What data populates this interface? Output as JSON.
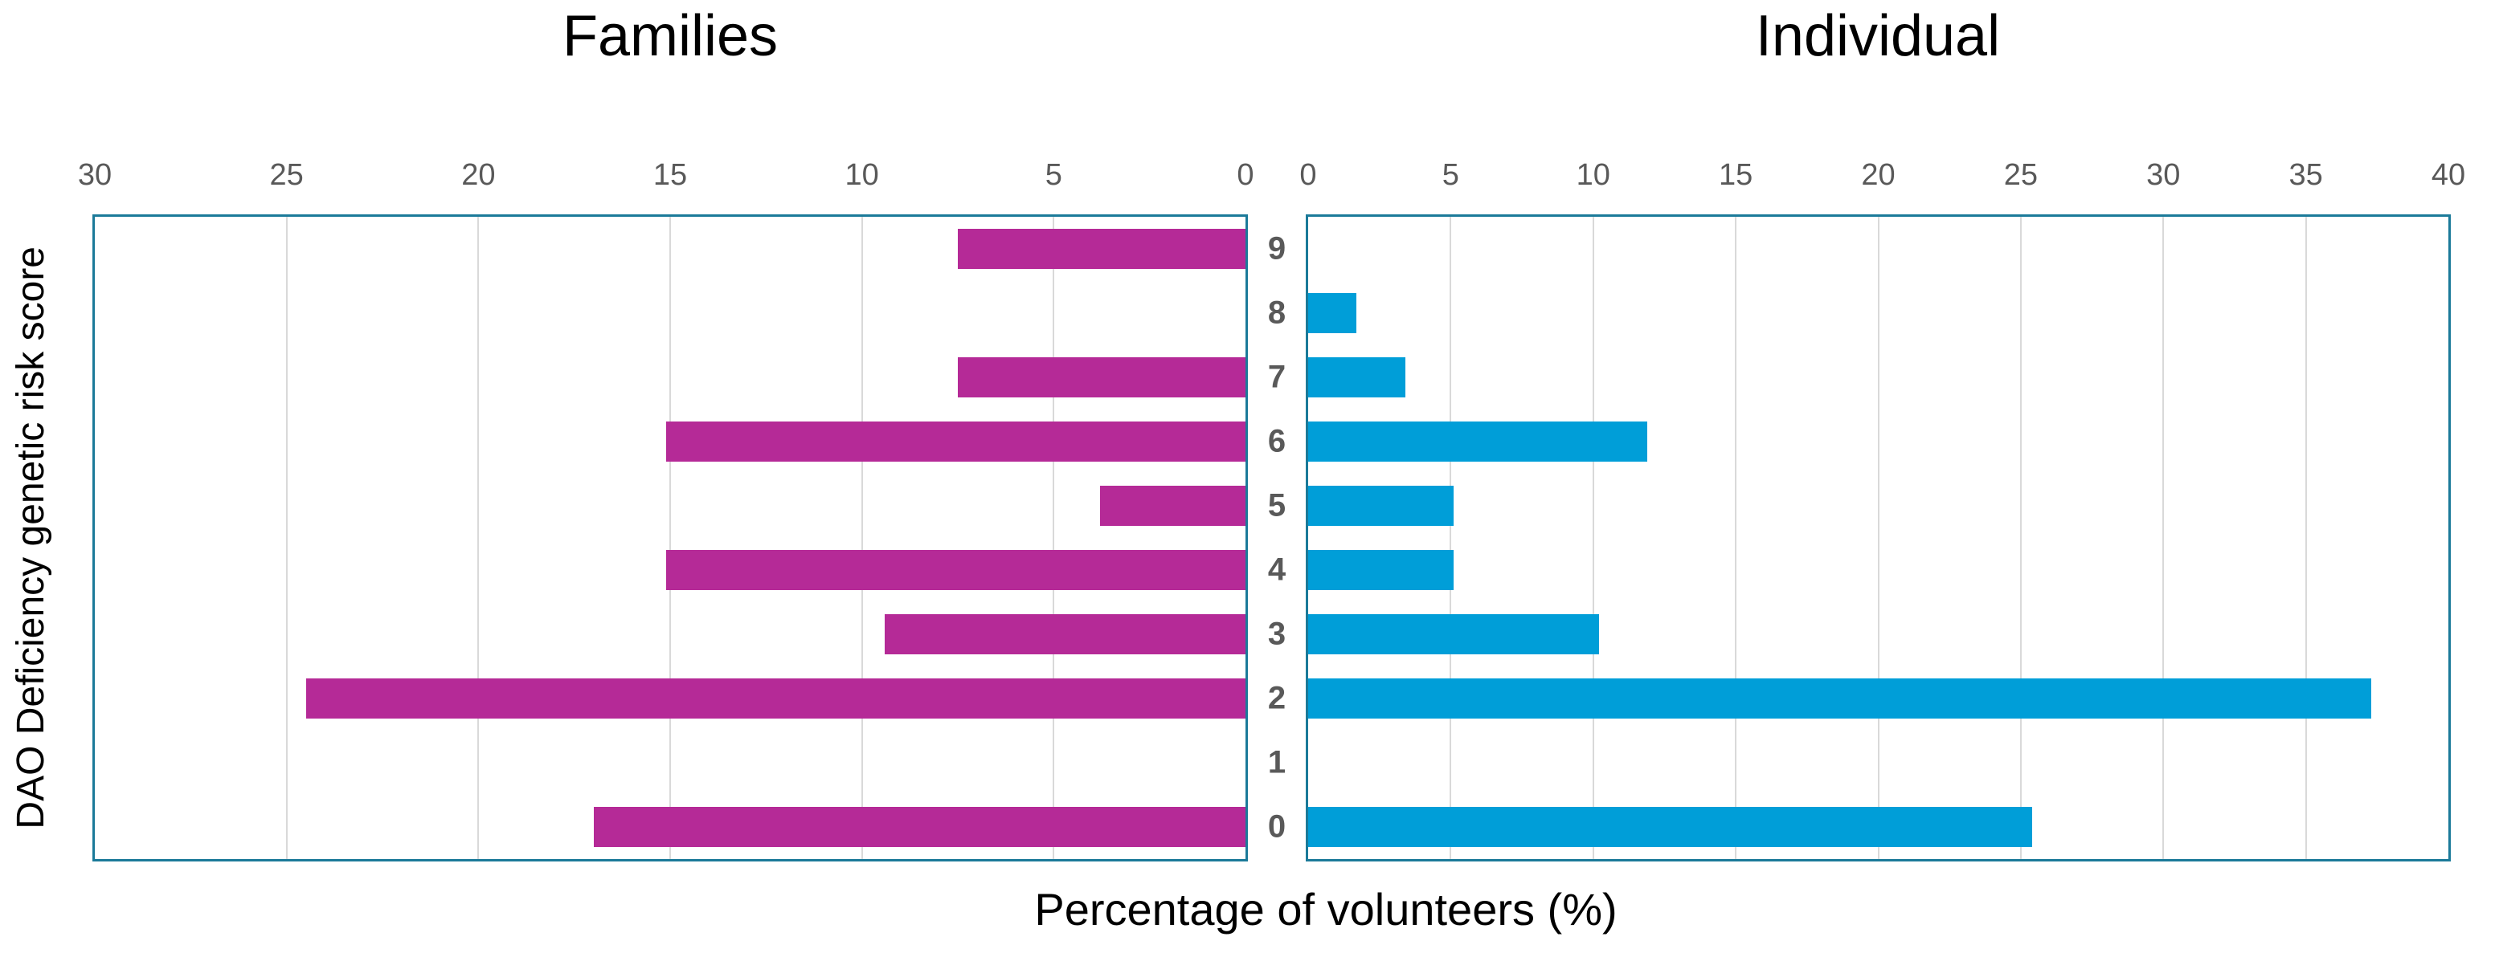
{
  "title_left": "Families",
  "title_right": "Individual",
  "axis": {
    "y_title": "DAO Deficiency genetic risk score",
    "x_title": "Percentage of volunteers (%)"
  },
  "colors": {
    "families_bar": "#B52A97",
    "individual_bar": "#009ED8",
    "plot_border": "#1B7A99",
    "gridline": "#D9D9D9",
    "tick_text": "#595959",
    "title_text": "#000000"
  },
  "chart_data": {
    "type": "bar",
    "subtype": "diverging-butterfly-horizontal",
    "title_left": "Families",
    "title_right": "Individual",
    "ylabel": "DAO Deficiency genetic risk score",
    "xlabel": "Percentage of volunteers (%)",
    "grid": "vertical gridlines every 5 units",
    "legend": "none",
    "categories": [
      "9",
      "8",
      "7",
      "6",
      "5",
      "4",
      "3",
      "2",
      "1",
      "0"
    ],
    "series": [
      {
        "name": "Families",
        "side": "left",
        "color": "#B52A97",
        "axis_range": [
          0,
          30
        ],
        "ticks": [
          "30",
          "25",
          "20",
          "15",
          "10",
          "5",
          "0"
        ],
        "values": [
          7.5,
          0,
          7.5,
          15.1,
          3.8,
          15.1,
          9.4,
          24.5,
          0,
          17.0
        ]
      },
      {
        "name": "Individual",
        "side": "right",
        "color": "#009ED8",
        "axis_range": [
          0,
          40
        ],
        "ticks": [
          "0",
          "5",
          "10",
          "15",
          "20",
          "25",
          "30",
          "35",
          "40"
        ],
        "values": [
          0,
          1.7,
          3.4,
          11.9,
          5.1,
          5.1,
          10.2,
          37.3,
          0,
          25.4
        ]
      }
    ]
  }
}
